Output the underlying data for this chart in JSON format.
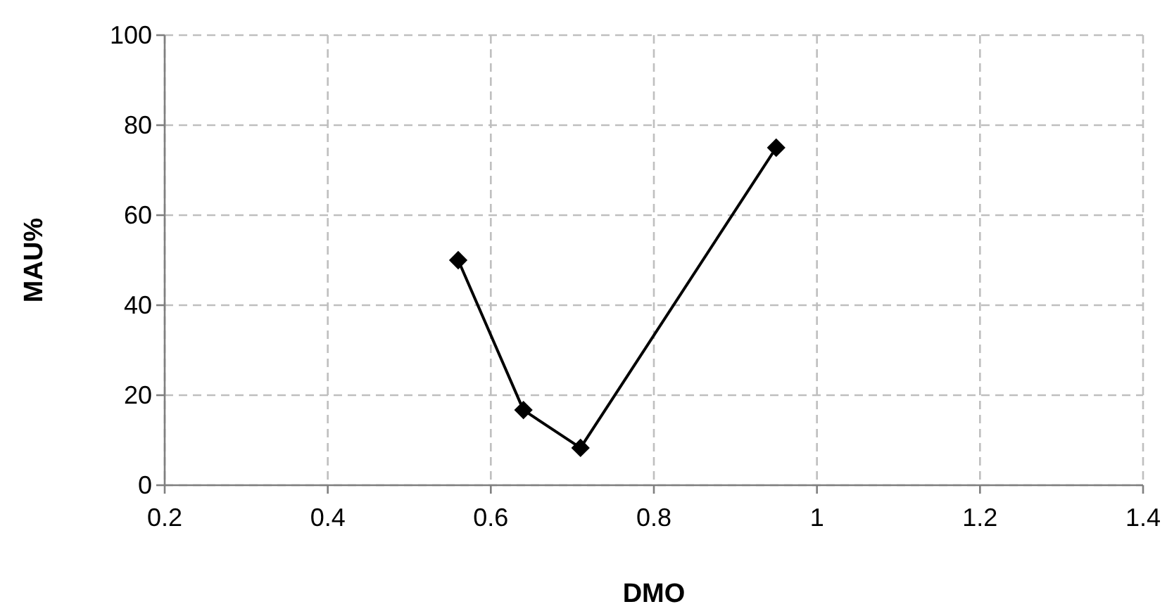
{
  "chart_data": {
    "type": "line",
    "xlabel": "DMO",
    "ylabel": "MAU%",
    "x": [
      0.56,
      0.64,
      0.71,
      0.95
    ],
    "series": [
      {
        "color": "#000000",
        "values": [
          50,
          16.7,
          8.3,
          75
        ]
      }
    ],
    "xlim": [
      0.2,
      1.4
    ],
    "xticks": [
      0.2,
      0.4,
      0.6,
      0.8,
      1,
      1.2,
      1.4
    ],
    "ylim": [
      0,
      100
    ],
    "yticks": [
      0,
      20,
      40,
      60,
      80,
      100
    ],
    "grid": true,
    "marker": "diamond",
    "line_style": "solid"
  }
}
